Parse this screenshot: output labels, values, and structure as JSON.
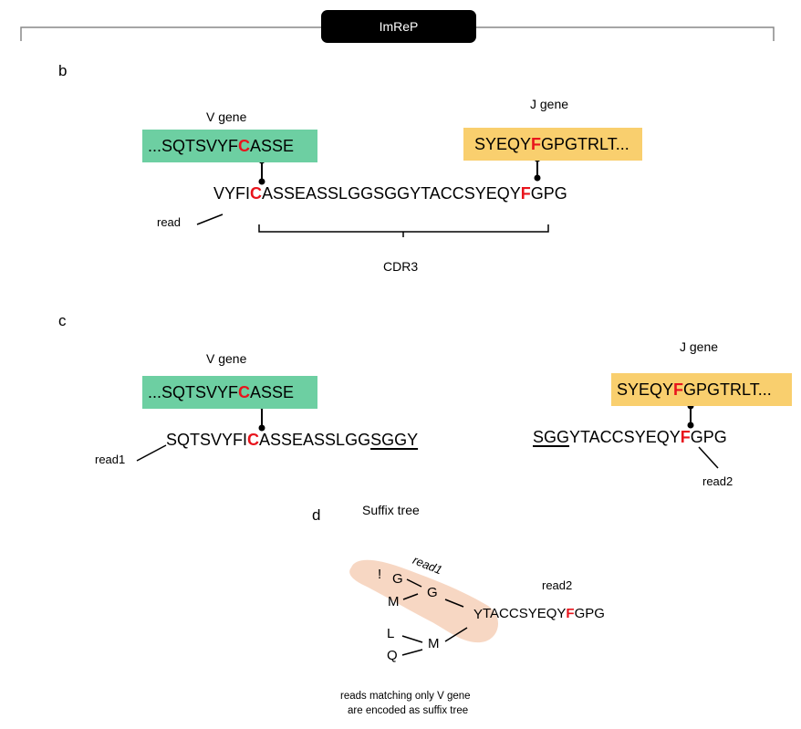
{
  "header": {
    "title": "ImReP"
  },
  "panel_b": {
    "letter": "b",
    "v_label": "V gene",
    "j_label": "J gene",
    "v_seq": {
      "pre": "...SQTSVYF",
      "mark": "C",
      "post": "ASSE"
    },
    "j_seq": {
      "pre": "SYEQY",
      "mark": "F",
      "post": "GPGTRLT..."
    },
    "read_seq": {
      "pre": "VYFI",
      "mark1": "C",
      "mid": "ASSEASSLGGSGGYTACCSYEQY",
      "mark2": "F",
      "post": "GPG"
    },
    "read_label": "read",
    "cdr3_label": "CDR3"
  },
  "panel_c": {
    "letter": "c",
    "v_label": "V gene",
    "j_label": "J gene",
    "v_seq": {
      "pre": "...SQTSVYF",
      "mark": "C",
      "post": "ASSE"
    },
    "j_seq": {
      "pre": "SYEQY",
      "mark": "F",
      "post": "GPGTRLT..."
    },
    "read1_seq": {
      "pre": "SQTSVYFI",
      "mark": "C",
      "mid": "ASSEASSLGG",
      "under": "SGGY"
    },
    "read2_seq": {
      "under": "SGG",
      "mid": "YTACCSYEQY",
      "mark": "F",
      "post": "GPG"
    },
    "read1_label": "read1",
    "read2_label": "read2"
  },
  "panel_d": {
    "letter": "d",
    "title": "Suffix tree",
    "read1_label": "read1",
    "read2_label": "read2",
    "nodes": [
      "!",
      "G",
      "M",
      "G",
      "Y",
      "L",
      "M",
      "Q"
    ],
    "read2_seq": {
      "pre": "TACCSYEQY",
      "mark": "F",
      "post": "GPG"
    },
    "caption_line1": "reads matching only V gene",
    "caption_line2": "are encoded as suffix tree"
  },
  "colors": {
    "v_gene": "#6dcfa2",
    "j_gene": "#f9cf6e",
    "highlight": "#e8141c",
    "read1_band": "#f6d3bd"
  }
}
